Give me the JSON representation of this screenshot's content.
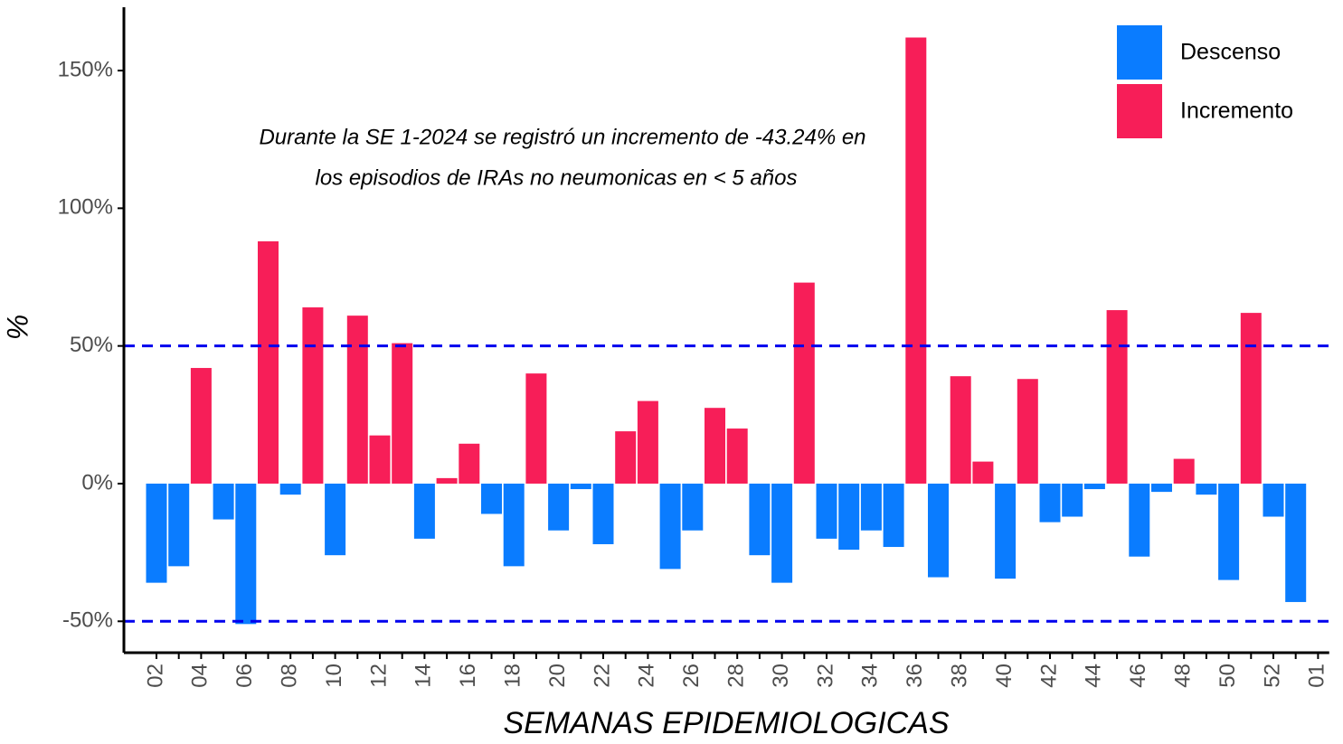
{
  "chart_data": {
    "type": "bar",
    "annotation": [
      "Durante la SE 1-2024 se registró un incremento de -43.24% en",
      "los episodios de IRAs no neumonicas en < 5 años"
    ],
    "x_label": "SEMANAS EPIDEMIOLOGICAS",
    "y_label": "%",
    "categories": [
      "02",
      null,
      "04",
      null,
      "06",
      null,
      "08",
      null,
      "10",
      null,
      "12",
      null,
      "14",
      null,
      "16",
      null,
      "18",
      null,
      "20",
      null,
      "22",
      null,
      "24",
      null,
      "26",
      null,
      "28",
      null,
      "30",
      null,
      "32",
      null,
      "34",
      null,
      "36",
      null,
      "38",
      null,
      "40",
      null,
      "42",
      null,
      "44",
      null,
      "46",
      null,
      "48",
      null,
      "50",
      null,
      "52",
      null,
      "01"
    ],
    "series": [
      {
        "name": "Descenso",
        "color": "#0a7cff",
        "values": [
          -36,
          -30,
          null,
          -13,
          -51,
          null,
          -4,
          null,
          -26,
          null,
          null,
          null,
          -20,
          null,
          null,
          -11,
          -30,
          null,
          -17,
          -2,
          -22,
          null,
          null,
          -31,
          -17,
          null,
          null,
          -26,
          -36,
          null,
          -20,
          -24,
          -17,
          -23,
          null,
          -34,
          null,
          null,
          -34.5,
          null,
          -14,
          -12,
          -2,
          null,
          -26.5,
          -3,
          null,
          -4,
          -35,
          null,
          -12,
          -43,
          null
        ]
      },
      {
        "name": "Incremento",
        "color": "#f71e58",
        "values": [
          null,
          null,
          42,
          null,
          null,
          88,
          null,
          64,
          null,
          61,
          17.5,
          51,
          null,
          2,
          14.5,
          null,
          null,
          40,
          null,
          null,
          null,
          19,
          30,
          null,
          null,
          27.5,
          20,
          null,
          null,
          73,
          null,
          null,
          null,
          null,
          162,
          null,
          39,
          8,
          null,
          38,
          null,
          null,
          null,
          63,
          null,
          null,
          9,
          null,
          null,
          62,
          null,
          null,
          null
        ]
      }
    ],
    "ylim": [
      -61.4,
      173
    ],
    "yticks": [
      {
        "value": -50,
        "label": "-50%"
      },
      {
        "value": 0,
        "label": "0%"
      },
      {
        "value": 50,
        "label": "50%"
      },
      {
        "value": 100,
        "label": "100%"
      },
      {
        "value": 150,
        "label": "150%"
      }
    ],
    "reference_lines": {
      "values": [
        50,
        -50
      ],
      "color": "#0000ee",
      "dashed": true
    },
    "legend": "top-right",
    "grid": false
  }
}
